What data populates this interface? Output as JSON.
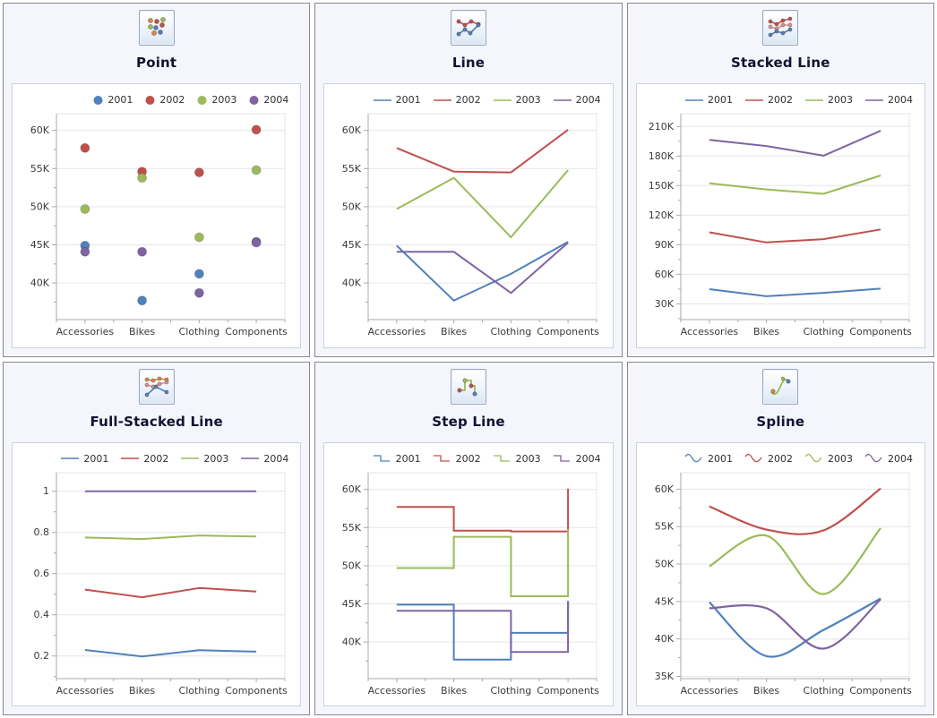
{
  "palette": {
    "s2001": "#4F81BD",
    "s2002": "#C0504D",
    "s2003": "#9BBB59",
    "s2004": "#8064A2",
    "icon_orange": "#D2894B",
    "icon_salmon": "#D99694",
    "icon_green": "#9BBB59",
    "panel_bg": "#f4f6fb",
    "panel_border": "#87878f",
    "card_border": "#ccd0da",
    "title_color": "#121232",
    "axis_text": "#3a3a3e",
    "grid_line": "#e5e5ea",
    "axis_line": "#a8a8b0"
  },
  "chart_data": [
    {
      "id": "point",
      "type": "scatter",
      "title": "Point",
      "icon": "point",
      "legend_marker": "circle",
      "stacking": "none",
      "legend_position": "top-right",
      "grid": true,
      "categories": [
        "Accessories",
        "Bikes",
        "Clothing",
        "Components"
      ],
      "series": [
        {
          "name": "2001",
          "color": "#4F81BD",
          "values": [
            44.9,
            37.7,
            41.2,
            45.4
          ]
        },
        {
          "name": "2002",
          "color": "#C0504D",
          "values": [
            57.7,
            54.6,
            54.5,
            60.1
          ]
        },
        {
          "name": "2003",
          "color": "#9BBB59",
          "values": [
            49.7,
            53.8,
            46.0,
            54.8
          ]
        },
        {
          "name": "2004",
          "color": "#8064A2",
          "values": [
            44.1,
            44.1,
            38.7,
            45.3
          ]
        }
      ],
      "y_axis": {
        "unit": "thousands",
        "tick_suffix": "K",
        "ticks": [
          40,
          45,
          50,
          55,
          60
        ],
        "minor_step": 2.5,
        "lim": [
          35.2,
          62.2
        ]
      }
    },
    {
      "id": "line",
      "type": "line",
      "title": "Line",
      "icon": "line",
      "legend_marker": "line",
      "stacking": "none",
      "legend_position": "top-right",
      "grid": true,
      "categories": [
        "Accessories",
        "Bikes",
        "Clothing",
        "Components"
      ],
      "series": [
        {
          "name": "2001",
          "color": "#4F81BD",
          "values": [
            44.9,
            37.7,
            41.2,
            45.4
          ]
        },
        {
          "name": "2002",
          "color": "#C0504D",
          "values": [
            57.7,
            54.6,
            54.5,
            60.1
          ]
        },
        {
          "name": "2003",
          "color": "#9BBB59",
          "values": [
            49.7,
            53.8,
            46.0,
            54.8
          ]
        },
        {
          "name": "2004",
          "color": "#8064A2",
          "values": [
            44.1,
            44.1,
            38.7,
            45.3
          ]
        }
      ],
      "y_axis": {
        "unit": "thousands",
        "tick_suffix": "K",
        "ticks": [
          40,
          45,
          50,
          55,
          60
        ],
        "minor_step": 2.5,
        "lim": [
          35.2,
          62.2
        ]
      }
    },
    {
      "id": "stacked-line",
      "type": "line",
      "title": "Stacked Line",
      "icon": "stackedline",
      "legend_marker": "line",
      "stacking": "stacked",
      "legend_position": "top-right",
      "grid": true,
      "categories": [
        "Accessories",
        "Bikes",
        "Clothing",
        "Components"
      ],
      "series": [
        {
          "name": "2001",
          "color": "#4F81BD",
          "values": [
            44.9,
            37.7,
            41.2,
            45.4
          ],
          "plotted": [
            44.9,
            37.7,
            41.2,
            45.4
          ]
        },
        {
          "name": "2002",
          "color": "#C0504D",
          "values": [
            57.7,
            54.6,
            54.5,
            60.1
          ],
          "plotted": [
            102.6,
            92.3,
            95.7,
            105.5
          ]
        },
        {
          "name": "2003",
          "color": "#9BBB59",
          "values": [
            49.7,
            53.8,
            46.0,
            54.8
          ],
          "plotted": [
            152.3,
            146.1,
            141.7,
            160.3
          ]
        },
        {
          "name": "2004",
          "color": "#8064A2",
          "values": [
            44.1,
            44.1,
            38.7,
            45.3
          ],
          "plotted": [
            196.4,
            190.2,
            180.4,
            205.6
          ]
        }
      ],
      "y_axis": {
        "unit": "thousands",
        "tick_suffix": "K",
        "ticks": [
          30,
          60,
          90,
          120,
          150,
          180,
          210
        ],
        "minor_step": 15,
        "lim": [
          14,
          223
        ]
      }
    },
    {
      "id": "full-stacked-line",
      "type": "line",
      "title": "Full-Stacked Line",
      "icon": "fullstackedline",
      "legend_marker": "line",
      "stacking": "fullstacked",
      "legend_position": "top-right",
      "grid": true,
      "categories": [
        "Accessories",
        "Bikes",
        "Clothing",
        "Components"
      ],
      "series": [
        {
          "name": "2001",
          "color": "#4F81BD",
          "values": [
            44.9,
            37.7,
            41.2,
            45.4
          ],
          "plotted": [
            0.229,
            0.198,
            0.228,
            0.221
          ]
        },
        {
          "name": "2002",
          "color": "#C0504D",
          "values": [
            57.7,
            54.6,
            54.5,
            60.1
          ],
          "plotted": [
            0.522,
            0.485,
            0.53,
            0.513
          ]
        },
        {
          "name": "2003",
          "color": "#9BBB59",
          "values": [
            49.7,
            53.8,
            46.0,
            54.8
          ],
          "plotted": [
            0.775,
            0.768,
            0.785,
            0.78
          ]
        },
        {
          "name": "2004",
          "color": "#8064A2",
          "values": [
            44.1,
            44.1,
            38.7,
            45.3
          ],
          "plotted": [
            1,
            1,
            1,
            1
          ]
        }
      ],
      "y_axis": {
        "unit": "fraction",
        "tick_suffix": "",
        "ticks": [
          0.2,
          0.4,
          0.6,
          0.8,
          1
        ],
        "minor_step": 0.1,
        "lim": [
          0.09,
          1.09
        ]
      }
    },
    {
      "id": "step-line",
      "type": "step",
      "title": "Step Line",
      "icon": "stepline",
      "legend_marker": "step",
      "stacking": "none",
      "legend_position": "top-right",
      "grid": true,
      "categories": [
        "Accessories",
        "Bikes",
        "Clothing",
        "Components"
      ],
      "series": [
        {
          "name": "2001",
          "color": "#4F81BD",
          "values": [
            44.9,
            37.7,
            41.2,
            45.4
          ]
        },
        {
          "name": "2002",
          "color": "#C0504D",
          "values": [
            57.7,
            54.6,
            54.5,
            60.1
          ]
        },
        {
          "name": "2003",
          "color": "#9BBB59",
          "values": [
            49.7,
            53.8,
            46.0,
            54.8
          ]
        },
        {
          "name": "2004",
          "color": "#8064A2",
          "values": [
            44.1,
            44.1,
            38.7,
            45.3
          ]
        }
      ],
      "y_axis": {
        "unit": "thousands",
        "tick_suffix": "K",
        "ticks": [
          40,
          45,
          50,
          55,
          60
        ],
        "minor_step": 2.5,
        "lim": [
          35.2,
          62.2
        ]
      }
    },
    {
      "id": "spline",
      "type": "spline",
      "title": "Spline",
      "icon": "spline",
      "legend_marker": "spline",
      "stacking": "none",
      "legend_position": "top-right",
      "grid": true,
      "categories": [
        "Accessories",
        "Bikes",
        "Clothing",
        "Components"
      ],
      "series": [
        {
          "name": "2001",
          "color": "#4F81BD",
          "values": [
            44.9,
            37.7,
            41.2,
            45.4
          ]
        },
        {
          "name": "2002",
          "color": "#C0504D",
          "values": [
            57.7,
            54.6,
            54.5,
            60.1
          ]
        },
        {
          "name": "2003",
          "color": "#9BBB59",
          "values": [
            49.7,
            53.8,
            46.0,
            54.8
          ]
        },
        {
          "name": "2004",
          "color": "#8064A2",
          "values": [
            44.1,
            44.1,
            38.7,
            45.3
          ]
        }
      ],
      "y_axis": {
        "unit": "thousands",
        "tick_suffix": "K",
        "ticks": [
          35,
          40,
          45,
          50,
          55,
          60
        ],
        "minor_step": 2.5,
        "lim": [
          34.7,
          62.2
        ]
      }
    }
  ]
}
